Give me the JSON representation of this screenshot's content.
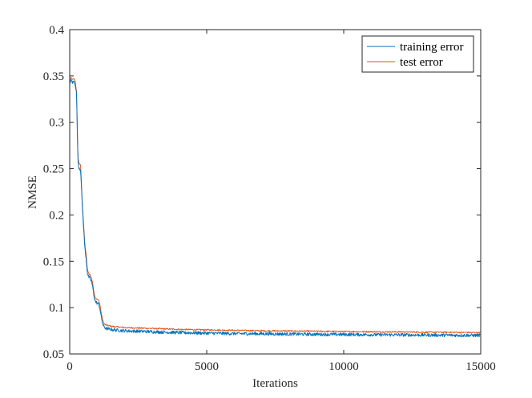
{
  "chart_data": {
    "type": "line",
    "title": "",
    "xlabel": "Iterations",
    "ylabel": "NMSE",
    "xlim": [
      0,
      15000
    ],
    "ylim": [
      0.05,
      0.4
    ],
    "xticks": [
      0,
      5000,
      10000,
      15000
    ],
    "yticks": [
      0.05,
      0.1,
      0.15,
      0.2,
      0.25,
      0.3,
      0.35,
      0.4
    ],
    "xtick_labels": [
      "0",
      "5000",
      "10000",
      "15000"
    ],
    "ytick_labels": [
      "0.05",
      "0.1",
      "0.15",
      "0.2",
      "0.25",
      "0.3",
      "0.35",
      "0.4"
    ],
    "grid": false,
    "legend": "top-right",
    "series": [
      {
        "name": "training error",
        "color": "#0072BD",
        "x": [
          0,
          50,
          100,
          150,
          200,
          250,
          300,
          330,
          360,
          400,
          450,
          500,
          550,
          600,
          650,
          700,
          750,
          800,
          850,
          900,
          950,
          1000,
          1050,
          1100,
          1150,
          1200,
          1250,
          1300,
          1400,
          1500,
          1600,
          1800,
          2000,
          2500,
          3000,
          3500,
          4000,
          4500,
          5000,
          6000,
          7000,
          8000,
          9000,
          10000,
          11000,
          12000,
          13000,
          14000,
          15000
        ],
        "y": [
          0.343,
          0.345,
          0.343,
          0.344,
          0.342,
          0.33,
          0.258,
          0.252,
          0.25,
          0.249,
          0.215,
          0.19,
          0.165,
          0.153,
          0.136,
          0.133,
          0.131,
          0.128,
          0.12,
          0.11,
          0.106,
          0.105,
          0.104,
          0.1,
          0.09,
          0.083,
          0.079,
          0.078,
          0.077,
          0.0765,
          0.076,
          0.0755,
          0.075,
          0.0745,
          0.074,
          0.0735,
          0.073,
          0.0728,
          0.0725,
          0.072,
          0.0718,
          0.0715,
          0.0712,
          0.071,
          0.0708,
          0.0706,
          0.0704,
          0.0702,
          0.07
        ]
      },
      {
        "name": "test error",
        "color": "#D95319",
        "x": [
          0,
          50,
          100,
          150,
          200,
          250,
          300,
          330,
          360,
          400,
          450,
          500,
          550,
          600,
          650,
          700,
          750,
          800,
          850,
          900,
          950,
          1000,
          1050,
          1100,
          1150,
          1200,
          1250,
          1300,
          1400,
          1500,
          1600,
          1800,
          2000,
          2500,
          3000,
          3500,
          4000,
          4500,
          5000,
          6000,
          7000,
          8000,
          9000,
          10000,
          11000,
          12000,
          13000,
          14000,
          15000
        ],
        "y": [
          0.346,
          0.348,
          0.346,
          0.347,
          0.345,
          0.333,
          0.262,
          0.257,
          0.255,
          0.253,
          0.219,
          0.194,
          0.169,
          0.157,
          0.14,
          0.137,
          0.135,
          0.132,
          0.124,
          0.114,
          0.11,
          0.109,
          0.108,
          0.104,
          0.094,
          0.087,
          0.083,
          0.0815,
          0.0805,
          0.08,
          0.0795,
          0.079,
          0.0785,
          0.078,
          0.0775,
          0.077,
          0.0765,
          0.0762,
          0.076,
          0.0755,
          0.075,
          0.0748,
          0.0745,
          0.0742,
          0.074,
          0.0738,
          0.0735,
          0.0733,
          0.073
        ]
      }
    ]
  }
}
